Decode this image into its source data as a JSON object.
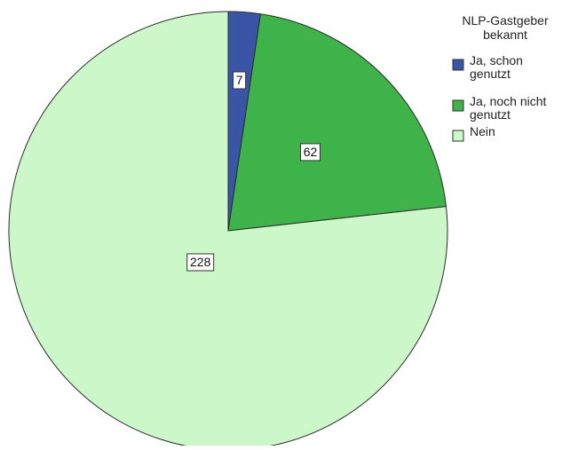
{
  "chart_data": {
    "type": "pie",
    "legend_title": "NLP-Gastgeber bekannt",
    "legend_title_lines": [
      "NLP-Gastgeber",
      "bekannt"
    ],
    "legend_placement": "top-right",
    "start_angle": "12 o'clock",
    "direction": "clockwise",
    "slices": [
      {
        "label": "Ja, schon genutzt",
        "label_lines": [
          "Ja, schon",
          "genutzt"
        ],
        "value": 7,
        "display": "7",
        "color": "#3a55a6"
      },
      {
        "label": "Ja, noch nicht genutzt",
        "label_lines": [
          "Ja, noch nicht",
          "genutzt"
        ],
        "value": 62,
        "display": "62",
        "color": "#3db34a"
      },
      {
        "label": "Nein",
        "label_lines": [
          "Nein"
        ],
        "value": 228,
        "display": "228",
        "color": "#ccf7c8"
      }
    ]
  }
}
